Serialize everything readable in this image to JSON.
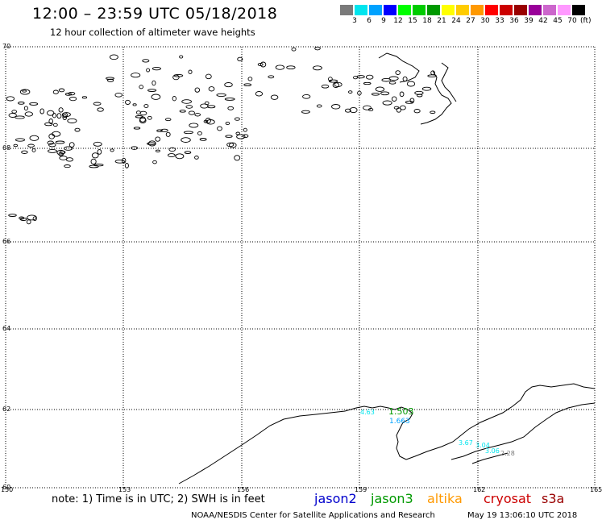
{
  "title": "12:00 – 23:59 UTC 05/18/2018",
  "subtitle": "12 hour collection of altimeter wave heights",
  "scale": {
    "colors": [
      "#7a7a7a",
      "#00e5ee",
      "#00a2ff",
      "#0000ff",
      "#00ff00",
      "#00cc00",
      "#009900",
      "#ffff00",
      "#ffcc00",
      "#ff9900",
      "#ff0000",
      "#cc0000",
      "#990000",
      "#990099",
      "#cc66cc",
      "#ff99ff",
      "#000000"
    ],
    "labels": [
      "3",
      "6",
      "9",
      "12",
      "15",
      "18",
      "21",
      "24",
      "27",
      "30",
      "33",
      "36",
      "39",
      "42",
      "45",
      "70"
    ],
    "unit": "(ft)"
  },
  "axes": {
    "lat_labels": [
      "70",
      "68",
      "66",
      "64",
      "62",
      "60"
    ],
    "lon_labels": [
      "150",
      "153",
      "156",
      "159",
      "162",
      "165"
    ]
  },
  "note": "note: 1) Time is in UTC; 2) SWH is in feet",
  "satellites": [
    {
      "name": "jason2",
      "color": "#0000cc"
    },
    {
      "name": "jason3",
      "color": "#009900"
    },
    {
      "name": "altika",
      "color": "#ff9900"
    },
    {
      "name": "cryosat",
      "color": "#cc0000"
    },
    {
      "name": "s3a",
      "color": "#990000"
    }
  ],
  "credit_left": "NOAA/NESDIS Center for Satellite Applications and Research",
  "credit_right": "May 19 13:06:10 UTC 2018",
  "observations": [
    {
      "text": "4.63",
      "color": "#00e5ee"
    },
    {
      "text": "1.503",
      "color": "#009900"
    },
    {
      "text": "1.663",
      "color": "#00a2ff"
    },
    {
      "text": "3.67",
      "color": "#00e5ee"
    },
    {
      "text": "3.04",
      "color": "#00e5ee"
    },
    {
      "text": "3.06",
      "color": "#00e5ee"
    },
    {
      "text": "2.28",
      "color": "#7a7a7a"
    }
  ]
}
